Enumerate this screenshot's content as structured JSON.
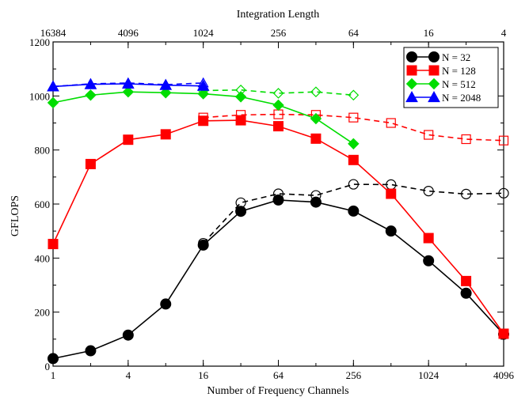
{
  "chart_data": {
    "type": "line",
    "xlabel": "Number of Frequency Channels",
    "x2label": "Integration Length",
    "ylabel": "GFLOPS",
    "x_scale": "log2",
    "xlim": [
      1,
      4096
    ],
    "ylim": [
      0,
      1200
    ],
    "x_ticks": [
      1,
      4,
      16,
      64,
      256,
      1024,
      4096
    ],
    "x2_ticks": [
      {
        "at": 1,
        "label": "16384"
      },
      {
        "at": 4,
        "label": "4096"
      },
      {
        "at": 16,
        "label": "1024"
      },
      {
        "at": 64,
        "label": "256"
      },
      {
        "at": 256,
        "label": "64"
      },
      {
        "at": 1024,
        "label": "16"
      },
      {
        "at": 4096,
        "label": "4"
      }
    ],
    "y_ticks": [
      0,
      200,
      400,
      600,
      800,
      1000,
      1200
    ],
    "grid": false,
    "legend_position": "top-right",
    "series": [
      {
        "name": "N = 32",
        "color": "#000000",
        "marker": "circle",
        "style": "solid",
        "x": [
          1,
          2,
          4,
          8,
          16,
          32,
          64,
          128,
          256,
          512,
          1024,
          2048,
          4096
        ],
        "y": [
          28,
          57,
          115,
          230,
          448,
          573,
          615,
          607,
          574,
          500,
          390,
          270,
          118
        ]
      },
      {
        "name": "N = 128",
        "color": "#ff0000",
        "marker": "square",
        "style": "solid",
        "x": [
          1,
          2,
          4,
          8,
          16,
          32,
          64,
          128,
          256,
          512,
          1024,
          2048,
          4096
        ],
        "y": [
          452,
          748,
          838,
          858,
          908,
          910,
          888,
          842,
          763,
          638,
          474,
          315,
          120
        ]
      },
      {
        "name": "N = 512",
        "color": "#00dd00",
        "marker": "diamond",
        "style": "solid",
        "x": [
          1,
          2,
          4,
          8,
          16,
          32,
          64,
          128,
          256
        ],
        "y": [
          975,
          1003,
          1015,
          1012,
          1008,
          997,
          966,
          916,
          823
        ]
      },
      {
        "name": "N = 2048",
        "color": "#0000ff",
        "marker": "triangle",
        "style": "solid",
        "x": [
          1,
          2,
          4,
          8,
          16
        ],
        "y": [
          1035,
          1043,
          1045,
          1040,
          1037
        ]
      },
      {
        "color": "#000000",
        "marker": "circle",
        "style": "dashed",
        "filled": false,
        "x": [
          16,
          32,
          64,
          128,
          256,
          512,
          1024,
          2048,
          4096
        ],
        "y": [
          455,
          605,
          638,
          632,
          673,
          672,
          648,
          637,
          640
        ]
      },
      {
        "color": "#ff0000",
        "marker": "square",
        "style": "dashed",
        "filled": false,
        "x": [
          16,
          32,
          64,
          128,
          256,
          512,
          1024,
          2048,
          4096
        ],
        "y": [
          920,
          930,
          932,
          930,
          920,
          900,
          856,
          840,
          835
        ]
      },
      {
        "color": "#00dd00",
        "marker": "diamond",
        "style": "dashed",
        "filled": false,
        "x": [
          16,
          32,
          64,
          128,
          256
        ],
        "y": [
          1020,
          1022,
          1010,
          1015,
          1003
        ]
      },
      {
        "color": "#0000ff",
        "marker": "triangle",
        "style": "dashed",
        "filled": false,
        "x": [
          1,
          2,
          4,
          8,
          16
        ],
        "y": [
          1035,
          1045,
          1048,
          1042,
          1048
        ]
      }
    ]
  }
}
